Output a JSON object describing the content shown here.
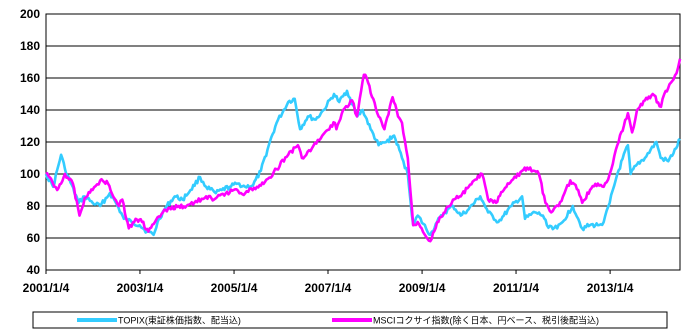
{
  "chart_data": {
    "type": "line",
    "title": "",
    "xlabel": "",
    "ylabel": "",
    "ylim": [
      40,
      200
    ],
    "yticks": [
      40,
      60,
      80,
      100,
      120,
      140,
      160,
      180,
      200
    ],
    "xlim": [
      "2001/1/4",
      "2014/7/1"
    ],
    "xticks": [
      "2001/1/4",
      "2003/1/4",
      "2005/1/4",
      "2007/1/4",
      "2009/1/4",
      "2011/1/4",
      "2013/1/4"
    ],
    "grid": "horizontal",
    "legend": "bottom",
    "series": [
      {
        "name": "TOPIX(東証株価指数、配当込)",
        "color": "#33ccff",
        "points": [
          [
            "2001/1/4",
            100
          ],
          [
            "2001/3/1",
            92
          ],
          [
            "2001/5/1",
            112
          ],
          [
            "2001/6/1",
            103
          ],
          [
            "2001/9/15",
            82
          ],
          [
            "2001/11/1",
            86
          ],
          [
            "2002/1/1",
            82
          ],
          [
            "2002/3/1",
            80
          ],
          [
            "2002/5/15",
            88
          ],
          [
            "2002/7/1",
            82
          ],
          [
            "2002/9/1",
            72
          ],
          [
            "2002/11/1",
            70
          ],
          [
            "2003/1/1",
            68
          ],
          [
            "2003/3/1",
            64
          ],
          [
            "2003/4/20",
            62
          ],
          [
            "2003/6/1",
            72
          ],
          [
            "2003/8/1",
            80
          ],
          [
            "2003/10/1",
            86
          ],
          [
            "2003/12/1",
            84
          ],
          [
            "2004/2/1",
            90
          ],
          [
            "2004/4/15",
            98
          ],
          [
            "2004/6/1",
            92
          ],
          [
            "2004/8/15",
            88
          ],
          [
            "2004/10/1",
            90
          ],
          [
            "2004/12/1",
            92
          ],
          [
            "2005/2/1",
            94
          ],
          [
            "2005/4/1",
            92
          ],
          [
            "2005/6/1",
            93
          ],
          [
            "2005/8/1",
            102
          ],
          [
            "2005/10/1",
            118
          ],
          [
            "2005/12/1",
            132
          ],
          [
            "2006/3/1",
            145
          ],
          [
            "2006/4/20",
            147
          ],
          [
            "2006/6/1",
            128
          ],
          [
            "2006/8/1",
            136
          ],
          [
            "2006/10/1",
            134
          ],
          [
            "2006/12/1",
            140
          ],
          [
            "2007/2/20",
            150
          ],
          [
            "2007/4/1",
            145
          ],
          [
            "2007/6/1",
            152
          ],
          [
            "2007/8/20",
            136
          ],
          [
            "2007/10/1",
            140
          ],
          [
            "2007/12/1",
            128
          ],
          [
            "2008/2/1",
            118
          ],
          [
            "2008/4/1",
            120
          ],
          [
            "2008/6/1",
            124
          ],
          [
            "2008/8/1",
            110
          ],
          [
            "2008/9/15",
            100
          ],
          [
            "2008/10/27",
            68
          ],
          [
            "2008/12/1",
            74
          ],
          [
            "2009/3/10",
            62
          ],
          [
            "2009/5/1",
            70
          ],
          [
            "2009/7/1",
            76
          ],
          [
            "2009/9/1",
            80
          ],
          [
            "2009/11/1",
            74
          ],
          [
            "2010/1/1",
            78
          ],
          [
            "2010/4/1",
            86
          ],
          [
            "2010/6/1",
            76
          ],
          [
            "2010/8/20",
            70
          ],
          [
            "2010/10/1",
            74
          ],
          [
            "2010/12/1",
            80
          ],
          [
            "2011/2/20",
            86
          ],
          [
            "2011/3/15",
            72
          ],
          [
            "2011/6/1",
            76
          ],
          [
            "2011/8/1",
            74
          ],
          [
            "2011/9/1",
            68
          ],
          [
            "2011/11/20",
            66
          ],
          [
            "2012/1/1",
            70
          ],
          [
            "2012/3/20",
            80
          ],
          [
            "2012/5/1",
            72
          ],
          [
            "2012/6/1",
            66
          ],
          [
            "2012/8/1",
            68
          ],
          [
            "2012/10/1",
            68
          ],
          [
            "2012/11/15",
            70
          ],
          [
            "2013/1/1",
            82
          ],
          [
            "2013/3/1",
            100
          ],
          [
            "2013/5/22",
            118
          ],
          [
            "2013/6/13",
            100
          ],
          [
            "2013/8/1",
            106
          ],
          [
            "2013/10/1",
            110
          ],
          [
            "2013/12/30",
            120
          ],
          [
            "2014/2/1",
            110
          ],
          [
            "2014/4/1",
            108
          ],
          [
            "2014/6/1",
            116
          ],
          [
            "2014/7/1",
            122
          ]
        ]
      },
      {
        "name": "MSCIコクサイ指数(除く日本、円ベース、税引後配当込)",
        "color": "#ff00ff",
        "points": [
          [
            "2001/1/4",
            100
          ],
          [
            "2001/2/1",
            98
          ],
          [
            "2001/4/1",
            90
          ],
          [
            "2001/6/1",
            100
          ],
          [
            "2001/8/1",
            94
          ],
          [
            "2001/9/21",
            74
          ],
          [
            "2001/11/1",
            85
          ],
          [
            "2002/1/1",
            90
          ],
          [
            "2002/3/1",
            96
          ],
          [
            "2002/5/1",
            94
          ],
          [
            "2002/7/24",
            80
          ],
          [
            "2002/8/20",
            84
          ],
          [
            "2002/10/9",
            66
          ],
          [
            "2002/12/1",
            72
          ],
          [
            "2003/1/20",
            70
          ],
          [
            "2003/3/11",
            64
          ],
          [
            "2003/5/1",
            70
          ],
          [
            "2003/7/1",
            76
          ],
          [
            "2003/9/1",
            78
          ],
          [
            "2003/11/1",
            80
          ],
          [
            "2004/1/1",
            80
          ],
          [
            "2004/3/1",
            82
          ],
          [
            "2004/6/1",
            86
          ],
          [
            "2004/8/1",
            84
          ],
          [
            "2004/11/1",
            88
          ],
          [
            "2005/1/1",
            90
          ],
          [
            "2005/4/1",
            88
          ],
          [
            "2005/7/1",
            92
          ],
          [
            "2005/9/1",
            95
          ],
          [
            "2005/12/1",
            103
          ],
          [
            "2006/3/1",
            112
          ],
          [
            "2006/5/15",
            118
          ],
          [
            "2006/6/15",
            110
          ],
          [
            "2006/9/1",
            116
          ],
          [
            "2006/12/1",
            125
          ],
          [
            "2007/2/27",
            132
          ],
          [
            "2007/3/10",
            128
          ],
          [
            "2007/5/1",
            140
          ],
          [
            "2007/7/10",
            146
          ],
          [
            "2007/8/17",
            136
          ],
          [
            "2007/10/10",
            162
          ],
          [
            "2007/11/1",
            160
          ],
          [
            "2008/1/22",
            138
          ],
          [
            "2008/3/17",
            128
          ],
          [
            "2008/5/20",
            148
          ],
          [
            "2008/7/1",
            136
          ],
          [
            "2008/8/1",
            132
          ],
          [
            "2008/9/15",
            110
          ],
          [
            "2008/10/27",
            68
          ],
          [
            "2008/12/1",
            70
          ],
          [
            "2009/1/1",
            66
          ],
          [
            "2009/3/9",
            58
          ],
          [
            "2009/5/1",
            70
          ],
          [
            "2009/7/1",
            76
          ],
          [
            "2009/9/1",
            84
          ],
          [
            "2009/11/1",
            86
          ],
          [
            "2010/1/1",
            92
          ],
          [
            "2010/4/15",
            100
          ],
          [
            "2010/6/1",
            84
          ],
          [
            "2010/8/1",
            82
          ],
          [
            "2010/10/1",
            90
          ],
          [
            "2010/12/1",
            96
          ],
          [
            "2011/2/20",
            102
          ],
          [
            "2011/4/1",
            104
          ],
          [
            "2011/7/1",
            100
          ],
          [
            "2011/8/20",
            82
          ],
          [
            "2011/10/4",
            76
          ],
          [
            "2011/12/1",
            80
          ],
          [
            "2012/3/1",
            96
          ],
          [
            "2012/5/1",
            90
          ],
          [
            "2012/6/1",
            82
          ],
          [
            "2012/8/1",
            90
          ],
          [
            "2012/10/1",
            94
          ],
          [
            "2012/11/15",
            92
          ],
          [
            "2013/1/1",
            100
          ],
          [
            "2013/3/1",
            118
          ],
          [
            "2013/5/22",
            138
          ],
          [
            "2013/6/24",
            126
          ],
          [
            "2013/8/1",
            140
          ],
          [
            "2013/10/1",
            146
          ],
          [
            "2013/12/1",
            150
          ],
          [
            "2014/2/3",
            142
          ],
          [
            "2014/3/1",
            150
          ],
          [
            "2014/5/1",
            158
          ],
          [
            "2014/6/15",
            166
          ],
          [
            "2014/7/1",
            172
          ]
        ]
      }
    ]
  }
}
